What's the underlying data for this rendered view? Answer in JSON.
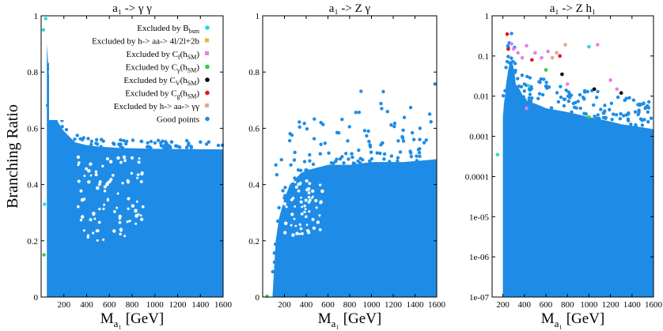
{
  "chart_data": [
    {
      "type": "scatter",
      "title": "a₁ -> γ γ",
      "xlabel": "M",
      "xlabel_sub": "a₁",
      "xlabel_unit": "[GeV]",
      "ylabel": "Branching Ratio",
      "xlim": [
        0,
        1600
      ],
      "ylim": [
        0,
        1
      ],
      "yscale": "linear",
      "xticks": [
        "200",
        "400",
        "600",
        "800",
        "1000",
        "1200",
        "1400",
        "1600"
      ],
      "yticks": [
        "0",
        "0.2",
        "0.4",
        "0.6",
        "0.8",
        "1"
      ],
      "legend_position": "top-right",
      "series": [
        {
          "name": "Excluded by B",
          "name_sub": "bsm",
          "color": "#2bd9d9"
        },
        {
          "name": "Excluded by h-> aa-> 4l/2l+2b",
          "color": "#f0b63a"
        },
        {
          "name": "Excluded by C",
          "name_sub": "f",
          "name_tail": "(h",
          "name_tail_sub": "SM",
          "name_end": ")",
          "color": "#e87de8"
        },
        {
          "name": "Excluded by C",
          "name_sub": "γ",
          "name_tail": "(h",
          "name_tail_sub": "SM",
          "name_end": ")",
          "color": "#3cc83c"
        },
        {
          "name": "Excluded by C",
          "name_sub": "V",
          "name_tail": "(h",
          "name_tail_sub": "SM",
          "name_end": ")",
          "color": "#000000"
        },
        {
          "name": "Excluded by C",
          "name_sub": "g",
          "name_tail": "(h",
          "name_tail_sub": "SM",
          "name_end": ")",
          "color": "#e8141e"
        },
        {
          "name": "Excluded by h-> aa-> γγ",
          "color": "#e6a58c"
        },
        {
          "name": "Good points",
          "color": "#1e8ce6"
        }
      ],
      "envelope": {
        "x": [
          50,
          80,
          100,
          120,
          150,
          200,
          250,
          300,
          400,
          500,
          700,
          1000,
          1600
        ],
        "y": [
          0.9,
          0.72,
          0.69,
          0.66,
          0.62,
          0.59,
          0.57,
          0.55,
          0.54,
          0.535,
          0.53,
          0.527,
          0.525
        ]
      }
    },
    {
      "type": "scatter",
      "title": "a₁ -> Z γ",
      "xlabel": "M",
      "xlabel_sub": "a₁",
      "xlabel_unit": "[GeV]",
      "xlim": [
        0,
        1600
      ],
      "ylim": [
        0,
        1
      ],
      "yscale": "linear",
      "xticks": [
        "200",
        "400",
        "600",
        "800",
        "1000",
        "1200",
        "1400",
        "1600"
      ],
      "yticks": [
        "0",
        "0.2",
        "0.4",
        "0.6",
        "0.8",
        "1"
      ],
      "envelope": {
        "x": [
          90,
          120,
          150,
          200,
          250,
          300,
          350,
          400,
          500,
          600,
          800,
          1000,
          1300,
          1600
        ],
        "y": [
          0.0,
          0.2,
          0.28,
          0.35,
          0.4,
          0.42,
          0.44,
          0.45,
          0.46,
          0.47,
          0.47,
          0.48,
          0.48,
          0.49
        ]
      }
    },
    {
      "type": "scatter",
      "title": "a₁ -> Z h₁",
      "xlabel": "M",
      "xlabel_sub": "a₁",
      "xlabel_unit": "[GeV]",
      "xlim": [
        100,
        1600
      ],
      "ylim": [
        1e-07,
        1
      ],
      "yscale": "log",
      "xticks": [
        "200",
        "400",
        "600",
        "800",
        "1000",
        "1200",
        "1400",
        "1600"
      ],
      "yticks": [
        "1e-07",
        "1e-06",
        "1e-05",
        "0.0001",
        "0.001",
        "0.01",
        "0.1",
        "1"
      ],
      "envelope": {
        "x": [
          200,
          220,
          240,
          260,
          280,
          300,
          320,
          400,
          600,
          800,
          1000,
          1300,
          1600
        ],
        "y": [
          0.003,
          0.01,
          0.03,
          0.06,
          0.08,
          0.05,
          0.02,
          0.008,
          0.005,
          0.004,
          0.003,
          0.002,
          0.0015
        ]
      },
      "excluded_points": [
        {
          "x": 240,
          "y": 0.35,
          "c": "#e8141e"
        },
        {
          "x": 250,
          "y": 0.15,
          "c": "#e8141e"
        },
        {
          "x": 280,
          "y": 0.2,
          "c": "#e87de8"
        },
        {
          "x": 300,
          "y": 0.15,
          "c": "#e87de8"
        },
        {
          "x": 340,
          "y": 0.12,
          "c": "#e87de8"
        },
        {
          "x": 380,
          "y": 0.09,
          "c": "#e87de8"
        },
        {
          "x": 420,
          "y": 0.18,
          "c": "#e87de8"
        },
        {
          "x": 470,
          "y": 0.08,
          "c": "#e8141e"
        },
        {
          "x": 500,
          "y": 0.12,
          "c": "#e87de8"
        },
        {
          "x": 560,
          "y": 0.09,
          "c": "#e87de8"
        },
        {
          "x": 600,
          "y": 0.045,
          "c": "#3cc83c"
        },
        {
          "x": 620,
          "y": 0.13,
          "c": "#e87de8"
        },
        {
          "x": 660,
          "y": 0.09,
          "c": "#e6a58c"
        },
        {
          "x": 700,
          "y": 0.12,
          "c": "#e6a58c"
        },
        {
          "x": 730,
          "y": 0.1,
          "c": "#e8141e"
        },
        {
          "x": 750,
          "y": 0.035,
          "c": "#000000"
        },
        {
          "x": 780,
          "y": 0.19,
          "c": "#e6a58c"
        },
        {
          "x": 800,
          "y": 0.02,
          "c": "#e87de8"
        },
        {
          "x": 1000,
          "y": 0.17,
          "c": "#2bd9d9"
        },
        {
          "x": 1080,
          "y": 0.19,
          "c": "#e87de8"
        },
        {
          "x": 1050,
          "y": 0.015,
          "c": "#000000"
        },
        {
          "x": 1200,
          "y": 0.025,
          "c": "#e87de8"
        },
        {
          "x": 1260,
          "y": 0.015,
          "c": "#e87de8"
        },
        {
          "x": 1300,
          "y": 0.012,
          "c": "#000000"
        },
        {
          "x": 440,
          "y": 0.018,
          "c": "#2bd9d9"
        },
        {
          "x": 420,
          "y": 0.005,
          "c": "#e87de8"
        },
        {
          "x": 150,
          "y": 0.00035,
          "c": "#2bd9d9"
        },
        {
          "x": 1000,
          "y": 0.003,
          "c": "#3cc83c"
        }
      ]
    }
  ]
}
